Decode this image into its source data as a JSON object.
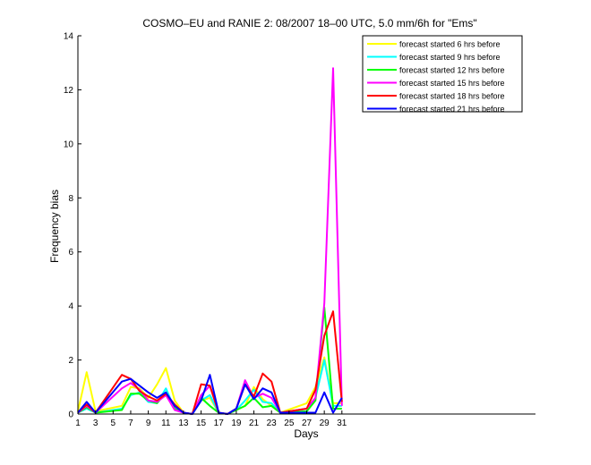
{
  "chart_data": {
    "type": "line",
    "title": "COSMO–EU and RANIE 2: 08/2007 18–00 UTC, 5.0 mm/6h for \"Ems\"",
    "xlabel": "Days",
    "ylabel": "Frequency bias",
    "xlim": [
      1,
      53
    ],
    "ylim": [
      0,
      14
    ],
    "xticks": [
      1,
      3,
      5,
      7,
      9,
      11,
      13,
      15,
      17,
      19,
      21,
      23,
      25,
      27,
      29,
      31
    ],
    "yticks": [
      0,
      2,
      4,
      6,
      8,
      10,
      12,
      14
    ],
    "grid": false,
    "legend_position": "top-right",
    "series": [
      {
        "name": "forecast started 6 hrs before",
        "color": "#ffff00",
        "x": [
          1,
          2,
          3,
          6,
          7,
          8,
          9,
          10,
          11,
          12,
          13,
          14,
          15,
          16,
          17,
          18,
          19,
          20,
          21,
          22,
          23,
          24,
          27,
          28,
          29,
          30,
          31
        ],
        "y": [
          0.1,
          1.55,
          0.1,
          0.3,
          1.0,
          0.95,
          0.6,
          1.1,
          1.7,
          0.5,
          0.05,
          0.0,
          0.5,
          0.6,
          0.05,
          0.0,
          0.15,
          0.3,
          1.0,
          0.55,
          0.3,
          0.05,
          0.4,
          1.0,
          2.1,
          0.4,
          0.4
        ]
      },
      {
        "name": "forecast started 9 hrs before",
        "color": "#00ffff",
        "x": [
          1,
          2,
          3,
          6,
          7,
          8,
          9,
          10,
          11,
          12,
          13,
          14,
          15,
          16,
          17,
          18,
          19,
          20,
          21,
          22,
          23,
          24,
          27,
          28,
          29,
          30,
          31
        ],
        "y": [
          0.05,
          0.2,
          0.05,
          0.2,
          0.7,
          0.8,
          0.45,
          0.4,
          0.95,
          0.2,
          0.05,
          0.0,
          0.5,
          0.7,
          0.05,
          0.0,
          0.15,
          0.5,
          0.9,
          0.45,
          0.4,
          0.05,
          0.1,
          0.6,
          2.0,
          0.3,
          0.3
        ]
      },
      {
        "name": "forecast started 12 hrs before",
        "color": "#00ff00",
        "x": [
          1,
          2,
          3,
          6,
          7,
          8,
          9,
          10,
          11,
          12,
          13,
          14,
          15,
          16,
          17,
          18,
          19,
          20,
          21,
          22,
          23,
          24,
          27,
          28,
          29,
          30,
          31
        ],
        "y": [
          0.05,
          0.25,
          0.05,
          0.15,
          0.75,
          0.75,
          0.5,
          0.4,
          0.8,
          0.2,
          0.05,
          0.0,
          0.6,
          0.3,
          0.05,
          0.0,
          0.15,
          0.3,
          0.6,
          0.25,
          0.3,
          0.05,
          0.1,
          0.5,
          3.95,
          0.2,
          0.2
        ]
      },
      {
        "name": "forecast started 15 hrs before",
        "color": "#ff00ff",
        "x": [
          1,
          2,
          3,
          6,
          7,
          8,
          9,
          10,
          11,
          12,
          13,
          14,
          15,
          16,
          17,
          18,
          19,
          20,
          21,
          22,
          23,
          24,
          27,
          28,
          29,
          30,
          31
        ],
        "y": [
          0.05,
          0.3,
          0.05,
          0.95,
          1.15,
          0.9,
          0.5,
          0.45,
          0.7,
          0.15,
          0.05,
          0.0,
          0.7,
          1.05,
          0.05,
          0.0,
          0.2,
          1.25,
          0.6,
          0.75,
          0.6,
          0.05,
          0.2,
          0.6,
          4.1,
          12.8,
          0.3
        ]
      },
      {
        "name": "forecast started 18 hrs before",
        "color": "#ff0000",
        "x": [
          1,
          2,
          3,
          6,
          7,
          8,
          9,
          10,
          11,
          12,
          13,
          14,
          15,
          16,
          17,
          18,
          19,
          20,
          21,
          22,
          23,
          24,
          27,
          28,
          29,
          30,
          31
        ],
        "y": [
          0.05,
          0.35,
          0.05,
          1.45,
          1.3,
          0.85,
          0.65,
          0.5,
          0.75,
          0.35,
          0.05,
          0.0,
          1.1,
          1.05,
          0.05,
          0.0,
          0.2,
          1.1,
          0.65,
          1.5,
          1.2,
          0.05,
          0.2,
          0.9,
          2.9,
          3.8,
          0.45
        ]
      },
      {
        "name": "forecast started 21 hrs before",
        "color": "#0000ff",
        "x": [
          1,
          2,
          3,
          6,
          7,
          8,
          9,
          10,
          11,
          12,
          13,
          14,
          15,
          16,
          17,
          18,
          19,
          20,
          21,
          22,
          23,
          24,
          27,
          28,
          29,
          30,
          31
        ],
        "y": [
          0.05,
          0.45,
          0.05,
          1.2,
          1.3,
          1.05,
          0.8,
          0.6,
          0.8,
          0.3,
          0.05,
          0.0,
          0.5,
          1.45,
          0.05,
          0.0,
          0.2,
          1.1,
          0.55,
          0.95,
          0.8,
          0.05,
          0.05,
          0.05,
          0.8,
          0.05,
          0.6
        ]
      }
    ]
  }
}
